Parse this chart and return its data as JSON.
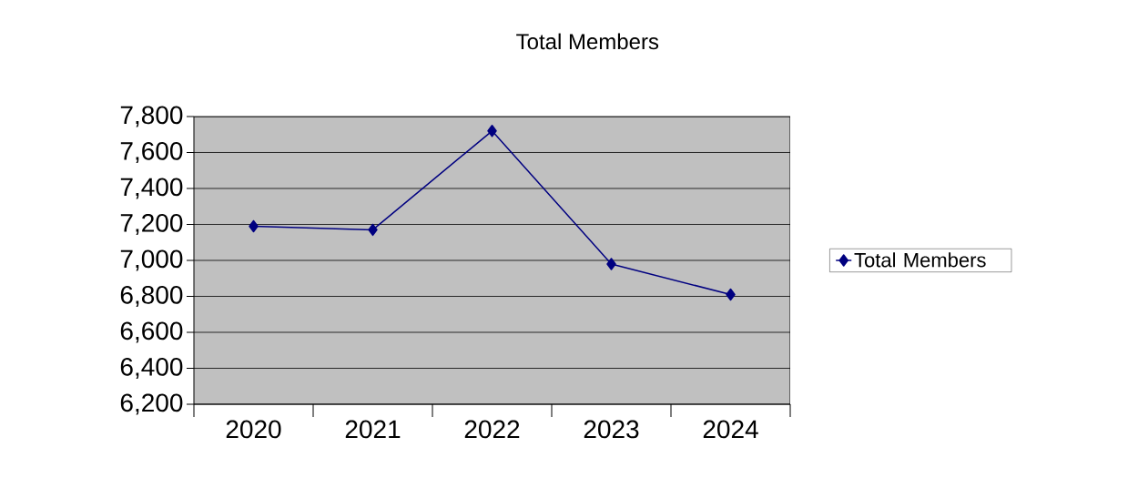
{
  "chart_data": {
    "type": "line",
    "title": "Total Members",
    "categories": [
      "2020",
      "2021",
      "2022",
      "2023",
      "2024"
    ],
    "series": [
      {
        "name": "Total Members",
        "color": "#000080",
        "values": [
          7190,
          7170,
          7720,
          6980,
          6810
        ]
      }
    ],
    "ylim": [
      6200,
      7800
    ],
    "yticks": [
      {
        "value": 6200,
        "label": "6,200"
      },
      {
        "value": 6400,
        "label": "6,400"
      },
      {
        "value": 6600,
        "label": "6,600"
      },
      {
        "value": 6800,
        "label": "6,800"
      },
      {
        "value": 7000,
        "label": "7,000"
      },
      {
        "value": 7200,
        "label": "7,200"
      },
      {
        "value": 7400,
        "label": "7,400"
      },
      {
        "value": 7600,
        "label": "7,600"
      },
      {
        "value": 7800,
        "label": "7,800"
      }
    ],
    "grid": "y",
    "legend": "right",
    "marker": "diamond",
    "line_style": "solid"
  }
}
